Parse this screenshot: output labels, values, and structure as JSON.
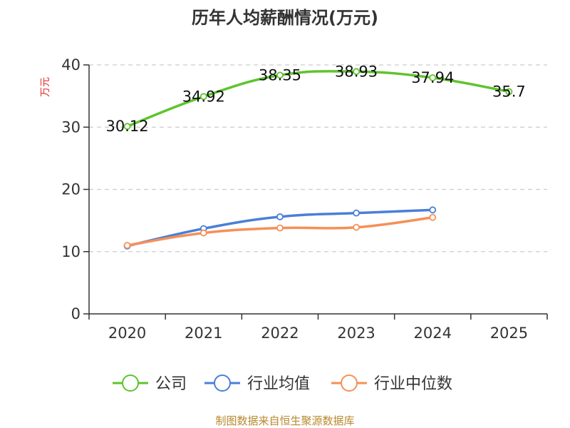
{
  "chart_data": {
    "type": "line",
    "title": "历年人均薪酬情况(万元)",
    "ylabel": "万元",
    "xlabel": "",
    "categories": [
      "2020",
      "2021",
      "2022",
      "2023",
      "2024",
      "2025"
    ],
    "ylim": [
      0,
      40
    ],
    "yticks": [
      0,
      10,
      20,
      30,
      40
    ],
    "grid": true,
    "legend_position": "bottom",
    "series": [
      {
        "name": "公司",
        "color": "#5ec42d",
        "values": [
          30.12,
          34.92,
          38.35,
          38.93,
          37.94,
          35.7
        ],
        "labels": [
          "30.12",
          "34.92",
          "38.35",
          "38.93",
          "37.94",
          "35.7"
        ]
      },
      {
        "name": "行业均值",
        "color": "#4a7fd8",
        "values": [
          10.9,
          13.7,
          15.6,
          16.2,
          16.7,
          null
        ]
      },
      {
        "name": "行业中位数",
        "color": "#f59057",
        "values": [
          11.0,
          13.0,
          13.8,
          13.9,
          15.5,
          null
        ]
      }
    ]
  },
  "source": "制图数据来自恒生聚源数据库"
}
